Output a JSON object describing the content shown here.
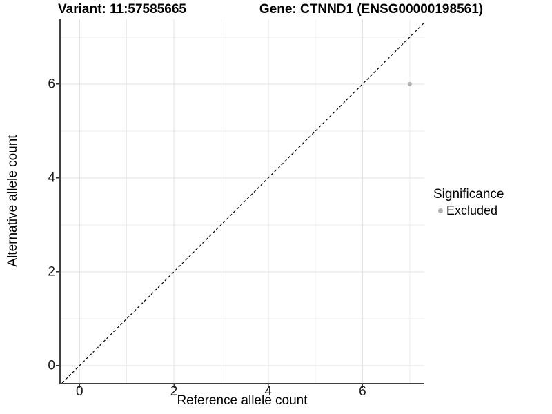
{
  "titles": {
    "left": "Variant: 11:57585665",
    "right": "Gene: CTNND1 (ENSG00000198561)"
  },
  "chart_data": {
    "type": "scatter",
    "title_left": "Variant: 11:57585665",
    "title_right": "Gene: CTNND1 (ENSG00000198561)",
    "xlabel": "Reference allele count",
    "ylabel": "Alternative allele count",
    "xlim": [
      -0.4,
      7.31
    ],
    "ylim": [
      -0.37,
      7.38
    ],
    "x_major_ticks": [
      0,
      2,
      4,
      6
    ],
    "y_major_ticks": [
      0,
      2,
      4,
      6
    ],
    "x_minor_ticks": [
      1,
      3,
      5,
      7
    ],
    "y_minor_ticks": [
      1,
      3,
      5,
      7
    ],
    "grid": true,
    "legend_position": "right",
    "identity_line": {
      "style": "dashed",
      "slope": 1,
      "intercept": 0
    },
    "series": [
      {
        "name": "Excluded",
        "color": "#b3b3b3",
        "points": [
          {
            "x": 7,
            "y": 6
          }
        ]
      }
    ]
  },
  "legend": {
    "title": "Significance",
    "items": [
      {
        "label": "Excluded",
        "marker_color": "#b3b3b3"
      }
    ]
  },
  "colors": {
    "background": "#ffffff",
    "grid_major": "#e3e3e3",
    "grid_minor": "#ececec",
    "axis_line": "#404040",
    "tick_mark": "#333333",
    "tick_label": "#1a1a1a",
    "dashed_line": "#000000",
    "point": "#b3b3b3"
  }
}
